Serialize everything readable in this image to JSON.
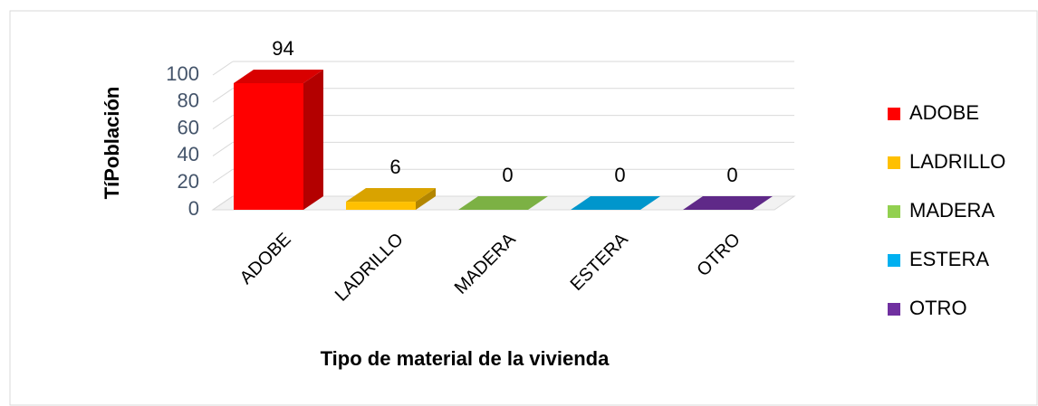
{
  "chart_data": {
    "type": "bar3d",
    "xlabel": "Tipo de material de la vivienda",
    "ylabel": "TíPoblación",
    "categories": [
      "ADOBE",
      "LADRILLO",
      "MADERA",
      "ESTERA",
      "OTRO"
    ],
    "values": [
      94,
      6,
      0,
      0,
      0
    ],
    "colors": [
      "#ff0000",
      "#ffc000",
      "#92d050",
      "#00b0f0",
      "#7030a0"
    ],
    "ylim": [
      0,
      100
    ],
    "yticks": [
      0,
      20,
      40,
      60,
      80,
      100
    ],
    "grid": true,
    "legend": "right"
  }
}
